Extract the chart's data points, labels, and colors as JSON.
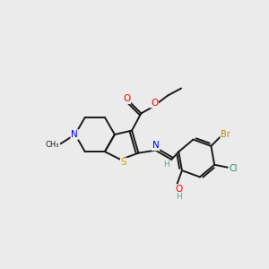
{
  "bg_color": "#ebebeb",
  "bond_color": "#1a1a1a",
  "atom_colors": {
    "O": "#ff0000",
    "N": "#0000ff",
    "S": "#ccaa00",
    "Br": "#b8860b",
    "Cl": "#2e8b57",
    "C": "#1a1a1a",
    "H": "#5f9ea0"
  },
  "figsize": [
    3.0,
    3.0
  ],
  "dpi": 100,
  "lw": 1.4,
  "dbl_off": 0.09
}
